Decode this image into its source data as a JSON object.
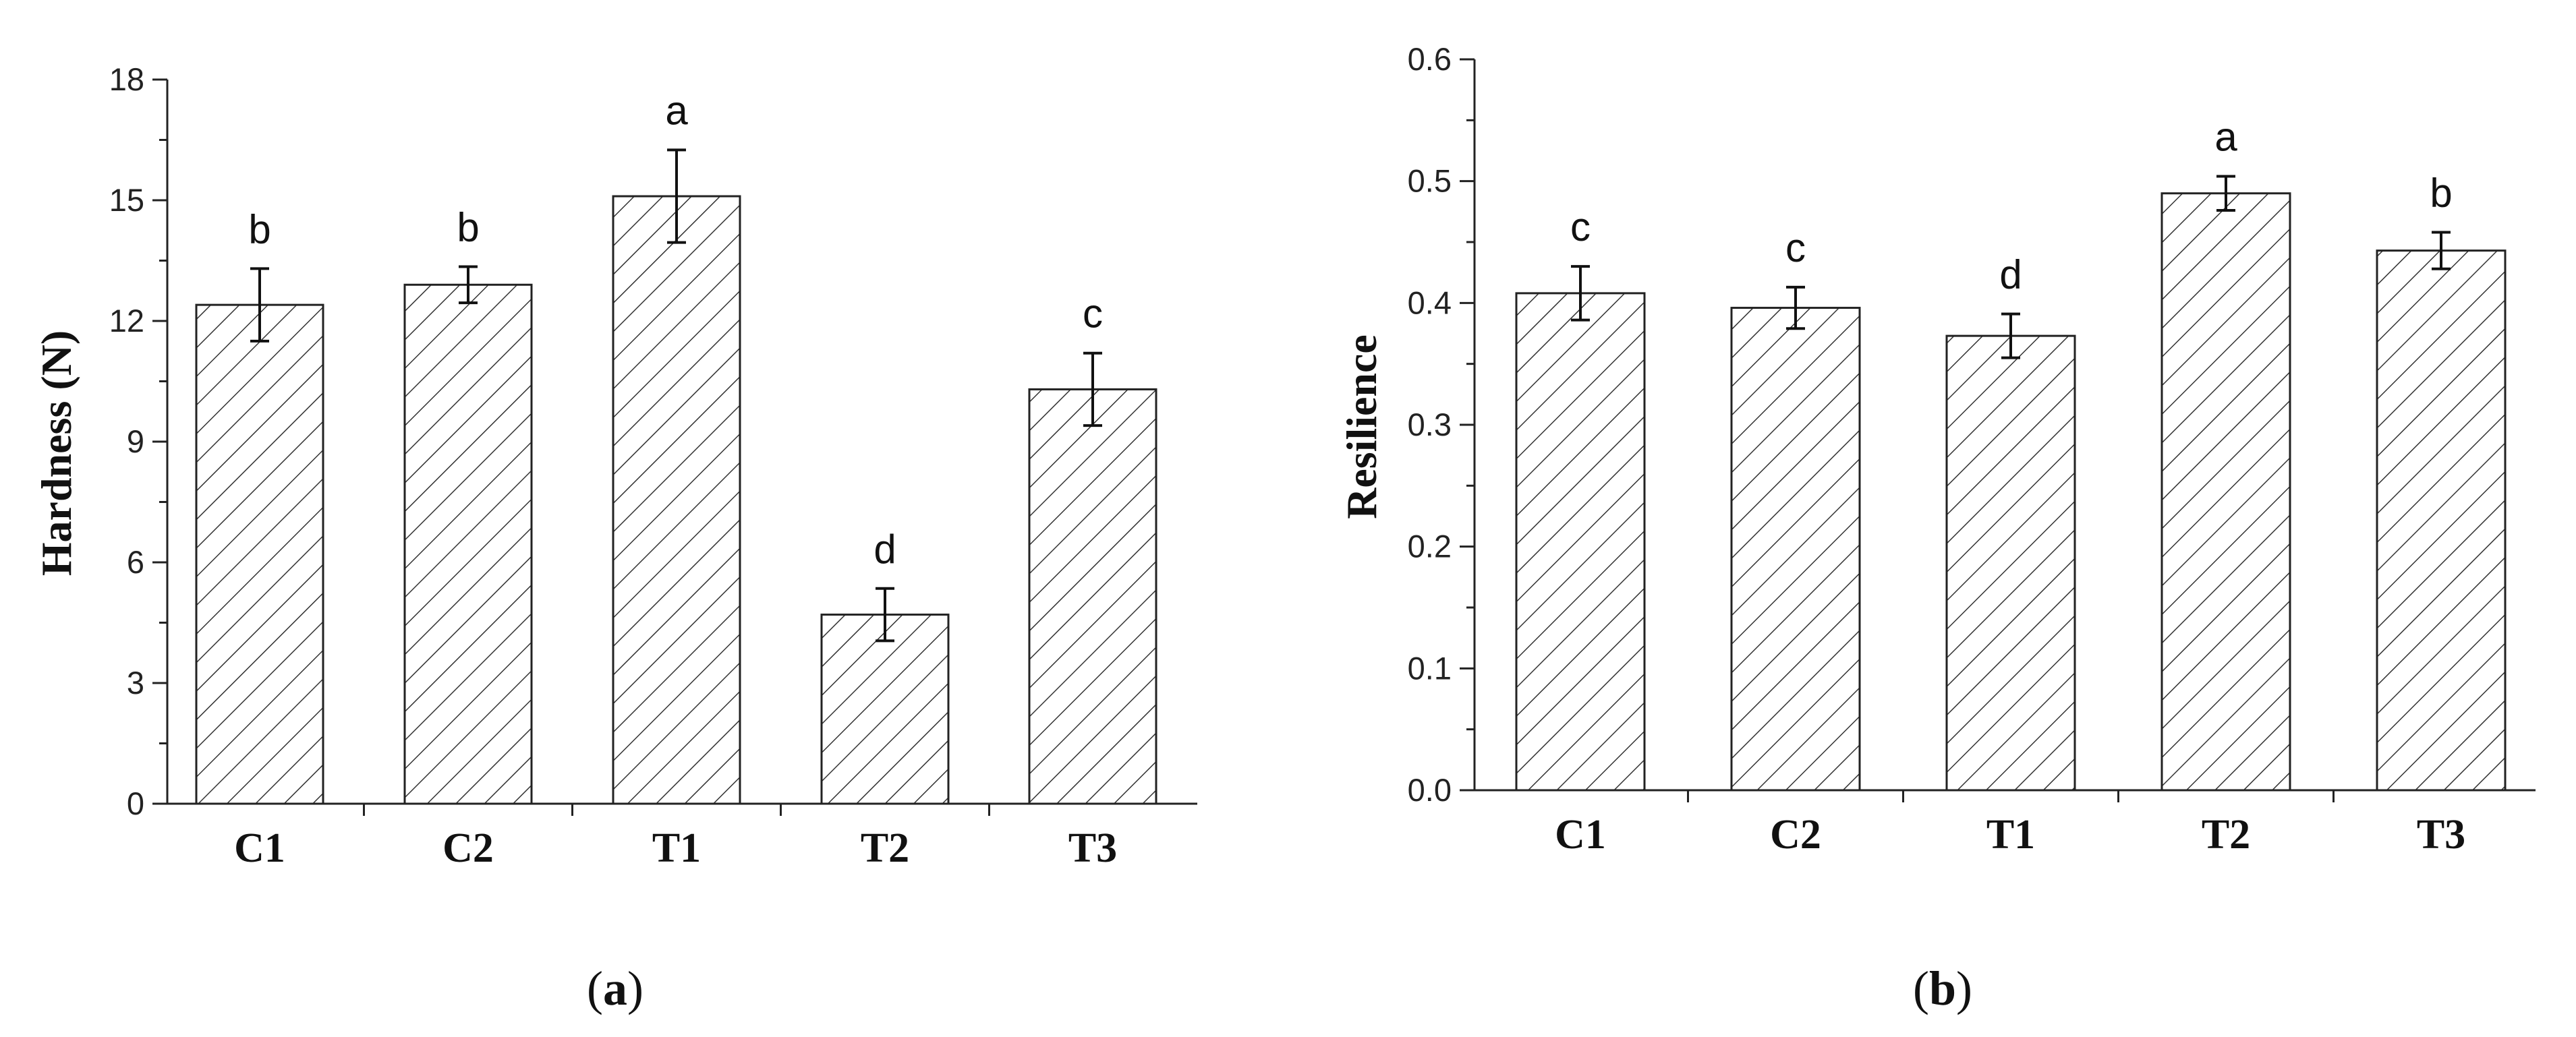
{
  "chart_data": [
    {
      "type": "bar",
      "panel_label": "a",
      "ylabel": "Hardness (N)",
      "xlabel": "",
      "ylim": [
        0,
        18
      ],
      "yticks": [
        "0",
        "3",
        "6",
        "9",
        "12",
        "15",
        "18"
      ],
      "categories": [
        "C1",
        "C2",
        "T1",
        "T2",
        "T3"
      ],
      "values": [
        12.4,
        12.9,
        15.1,
        4.7,
        10.3
      ],
      "errors": [
        0.9,
        0.45,
        1.15,
        0.65,
        0.9
      ],
      "letters": [
        "b",
        "b",
        "a",
        "d",
        "c"
      ],
      "fill_pattern": "diagonal-hatch",
      "grid": false,
      "legend": false
    },
    {
      "type": "bar",
      "panel_label": "b",
      "ylabel": "Resilience",
      "xlabel": "",
      "ylim": [
        0,
        0.6
      ],
      "yticks": [
        "0.0",
        "0.1",
        "0.2",
        "0.3",
        "0.4",
        "0.5",
        "0.6"
      ],
      "categories": [
        "C1",
        "C2",
        "T1",
        "T2",
        "T3"
      ],
      "values": [
        0.408,
        0.396,
        0.373,
        0.49,
        0.443
      ],
      "errors": [
        0.022,
        0.017,
        0.018,
        0.014,
        0.015
      ],
      "letters": [
        "c",
        "c",
        "d",
        "a",
        "b"
      ],
      "fill_pattern": "diagonal-hatch",
      "grid": false,
      "legend": false
    }
  ]
}
